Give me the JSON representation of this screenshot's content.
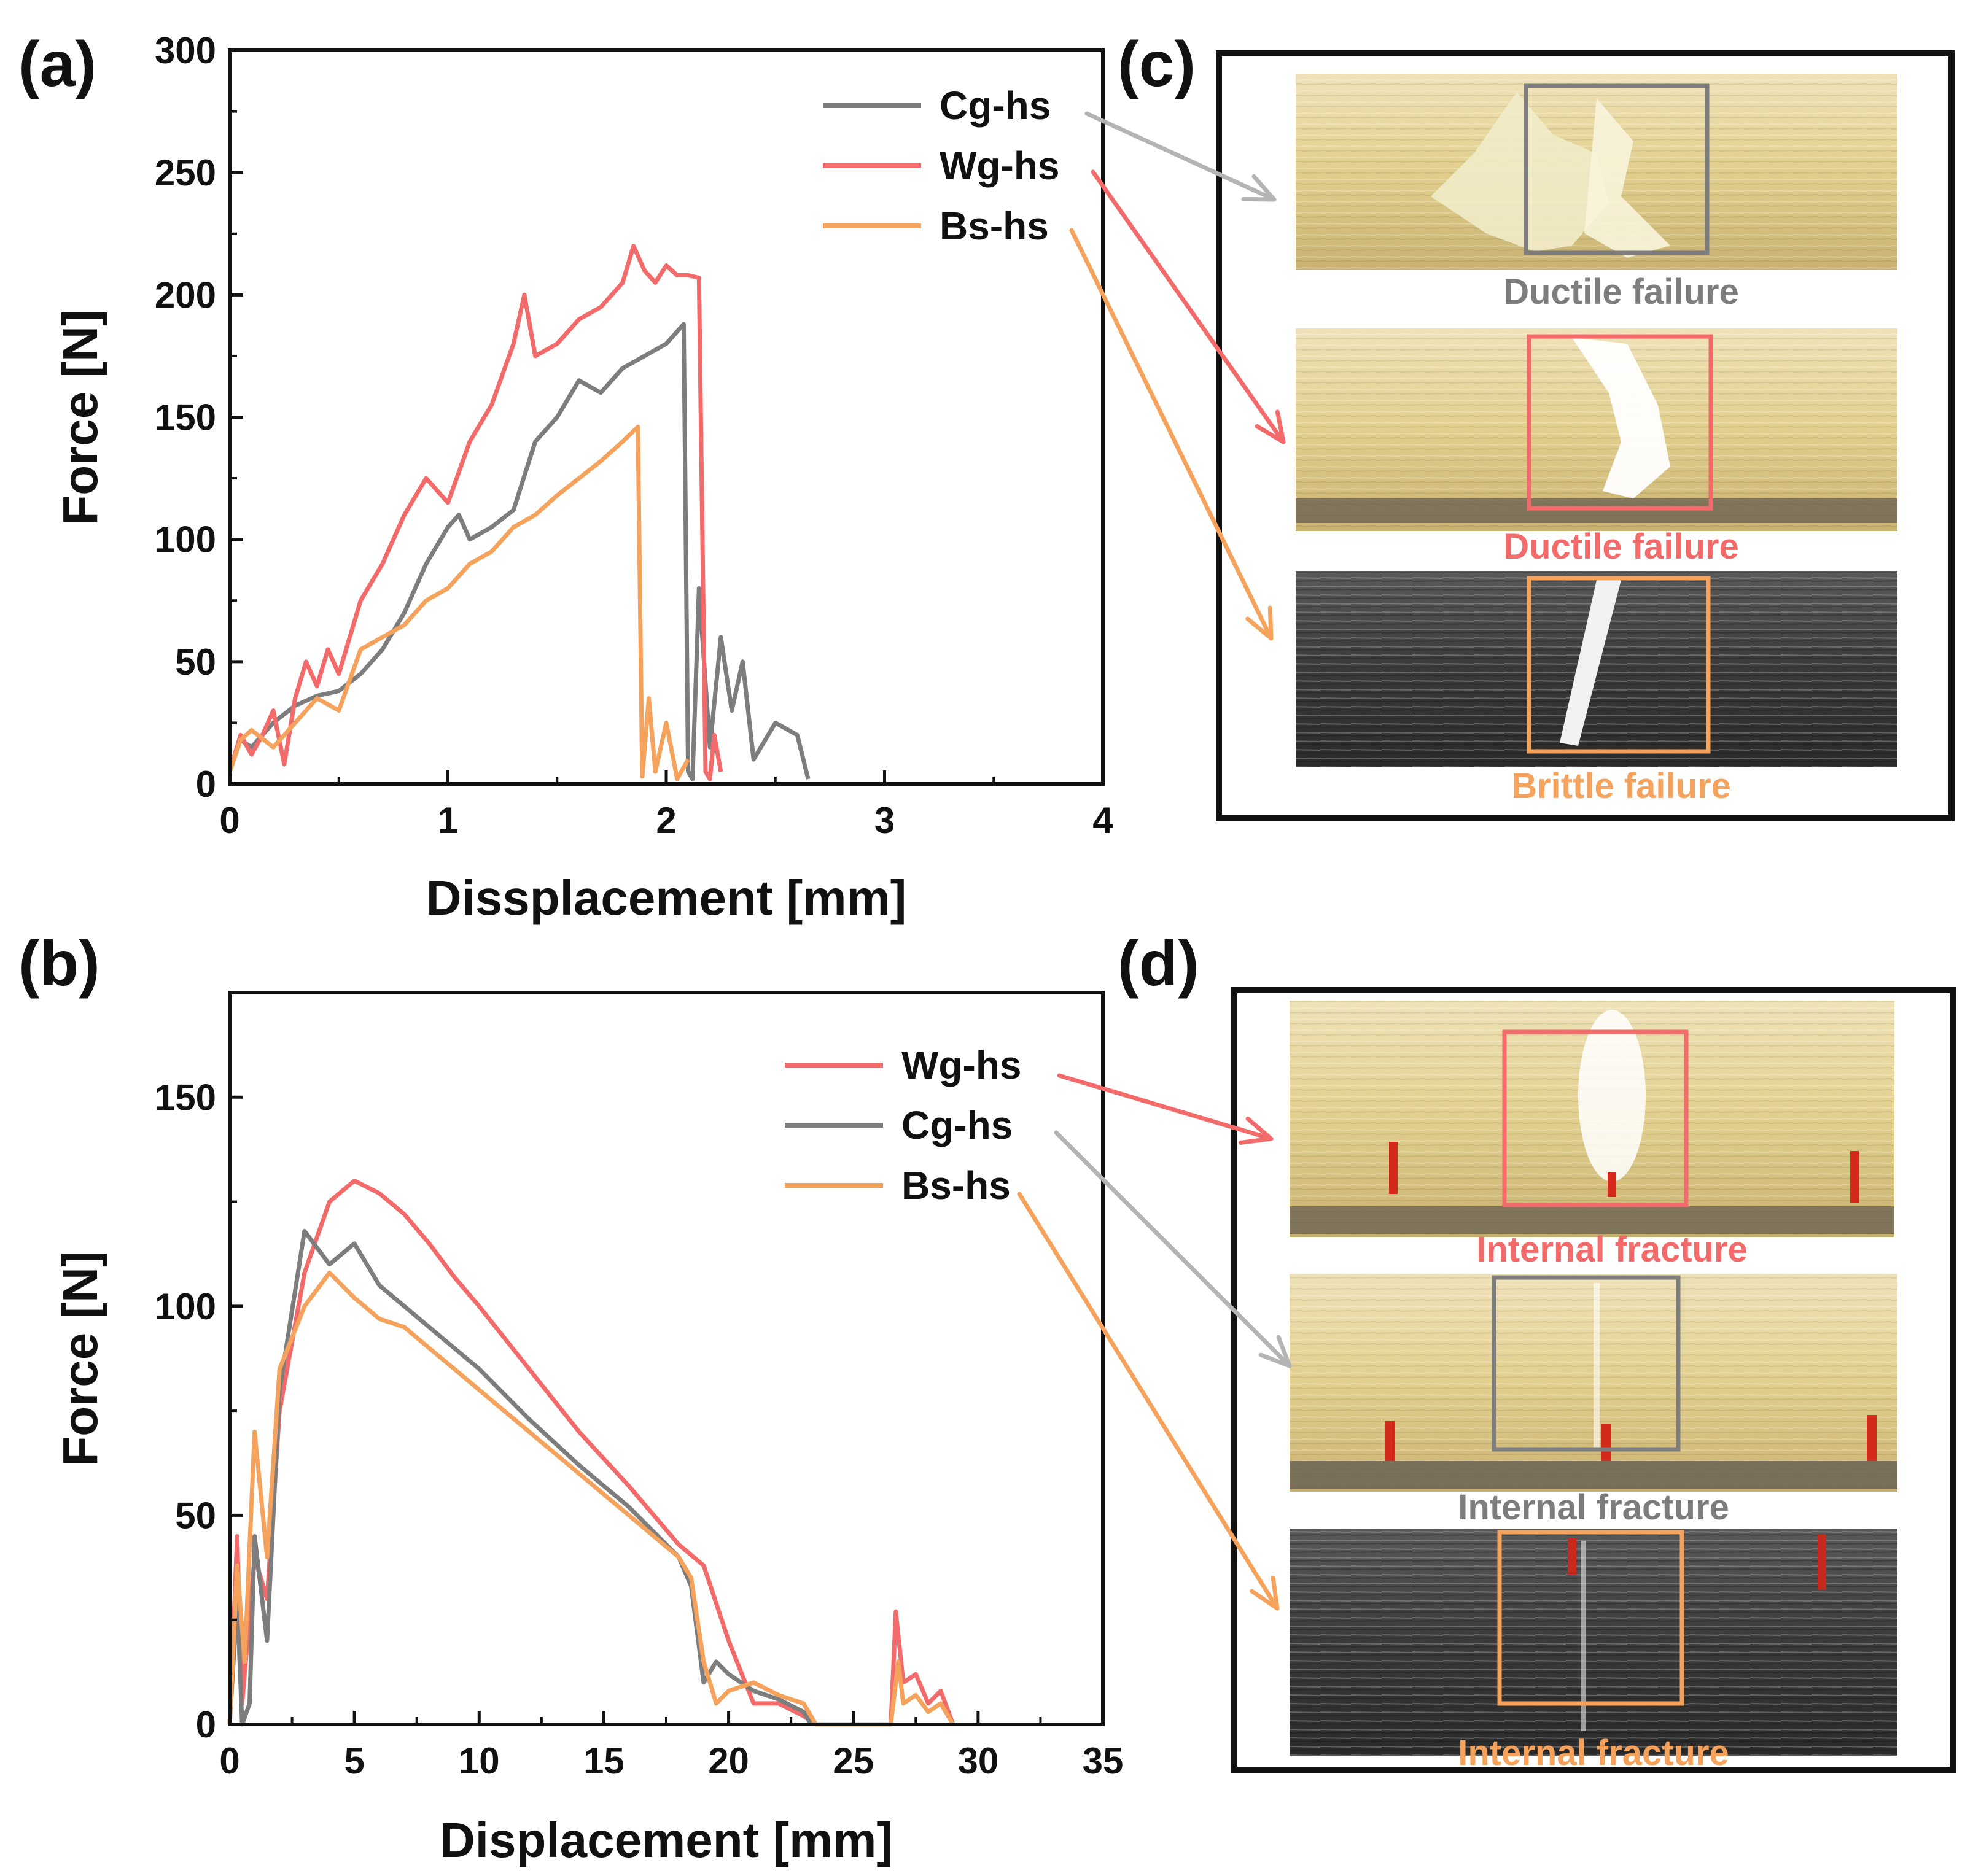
{
  "colors": {
    "Cg-hs": "#7d7d7d",
    "Wg-hs": "#f26a6a",
    "Bs-hs": "#f5a35c",
    "arrow_gray": "#b4b4b4"
  },
  "panels": {
    "a": "(a)",
    "b": "(b)",
    "c": "(c)",
    "d": "(d)"
  },
  "photos_c": [
    {
      "series": "Cg-hs",
      "caption": "Ductile failure",
      "caption_color": "#7d7d7d",
      "photo": "yellow-specimen-photo"
    },
    {
      "series": "Wg-hs",
      "caption": "Ductile failure",
      "caption_color": "#f26a6a",
      "photo": "yellow-specimen-photo"
    },
    {
      "series": "Bs-hs",
      "caption": "Brittle failure",
      "caption_color": "#f5a35c",
      "photo": "dark-specimen-photo"
    }
  ],
  "photos_d": [
    {
      "series": "Wg-hs",
      "caption": "Internal fracture",
      "caption_color": "#f26a6a",
      "photo": "yellow-specimen-photo"
    },
    {
      "series": "Cg-hs",
      "caption": "Internal fracture",
      "caption_color": "#7d7d7d",
      "photo": "yellow-specimen-photo"
    },
    {
      "series": "Bs-hs",
      "caption": "Internal fracture",
      "caption_color": "#f5a35c",
      "photo": "dark-specimen-photo"
    }
  ],
  "chart_data": [
    {
      "type": "line",
      "panel": "a",
      "xlabel": "Dissplacement [mm]",
      "ylabel": "Force [N]",
      "xlim": [
        0,
        4
      ],
      "ylim": [
        0,
        300
      ],
      "xticks": [
        0,
        1,
        2,
        3,
        4
      ],
      "yticks": [
        0,
        50,
        100,
        150,
        200,
        250,
        300
      ],
      "legend": "top-right",
      "series": [
        {
          "name": "Cg-hs",
          "x": [
            0,
            0.05,
            0.1,
            0.2,
            0.3,
            0.4,
            0.5,
            0.6,
            0.7,
            0.8,
            0.9,
            1.0,
            1.05,
            1.1,
            1.2,
            1.3,
            1.4,
            1.5,
            1.6,
            1.7,
            1.8,
            1.9,
            2.0,
            2.08,
            2.1,
            2.12,
            2.15,
            2.2,
            2.25,
            2.3,
            2.35,
            2.4,
            2.5,
            2.6,
            2.65
          ],
          "y": [
            5,
            18,
            15,
            25,
            32,
            36,
            38,
            45,
            55,
            70,
            90,
            105,
            110,
            100,
            105,
            112,
            140,
            150,
            165,
            160,
            170,
            175,
            180,
            188,
            5,
            2,
            80,
            15,
            60,
            30,
            50,
            10,
            25,
            20,
            2
          ]
        },
        {
          "name": "Wg-hs",
          "x": [
            0,
            0.05,
            0.1,
            0.15,
            0.2,
            0.25,
            0.3,
            0.35,
            0.4,
            0.45,
            0.5,
            0.6,
            0.7,
            0.8,
            0.9,
            1.0,
            1.1,
            1.2,
            1.3,
            1.35,
            1.4,
            1.5,
            1.6,
            1.7,
            1.8,
            1.85,
            1.9,
            1.95,
            2.0,
            2.05,
            2.1,
            2.15,
            2.18,
            2.2,
            2.22,
            2.25
          ],
          "y": [
            5,
            20,
            12,
            20,
            30,
            8,
            35,
            50,
            40,
            55,
            45,
            75,
            90,
            110,
            125,
            115,
            140,
            155,
            180,
            200,
            175,
            180,
            190,
            195,
            205,
            220,
            210,
            205,
            212,
            208,
            208,
            207,
            5,
            2,
            20,
            5
          ]
        },
        {
          "name": "Bs-hs",
          "x": [
            0,
            0.05,
            0.1,
            0.2,
            0.3,
            0.4,
            0.5,
            0.6,
            0.7,
            0.8,
            0.9,
            1.0,
            1.1,
            1.2,
            1.3,
            1.4,
            1.5,
            1.6,
            1.7,
            1.8,
            1.87,
            1.89,
            1.92,
            1.95,
            2.0,
            2.05,
            2.1
          ],
          "y": [
            5,
            18,
            22,
            15,
            25,
            35,
            30,
            55,
            60,
            65,
            75,
            80,
            90,
            95,
            105,
            110,
            118,
            125,
            132,
            140,
            146,
            3,
            35,
            5,
            25,
            2,
            10
          ]
        }
      ]
    },
    {
      "type": "line",
      "panel": "b",
      "xlabel": "Displacement [mm]",
      "ylabel": "Force [N]",
      "xlim": [
        0,
        35
      ],
      "ylim": [
        0,
        175
      ],
      "xticks": [
        0,
        5,
        10,
        15,
        20,
        25,
        30,
        35
      ],
      "yticks": [
        0,
        50,
        100,
        150
      ],
      "legend": "top-right",
      "series": [
        {
          "name": "Wg-hs",
          "x": [
            0,
            0.3,
            0.5,
            1,
            1.5,
            2,
            3,
            4,
            5,
            6,
            7,
            8,
            9,
            10,
            12,
            14,
            16,
            18,
            19,
            20,
            21,
            22,
            23,
            23.5,
            26.5,
            26.7,
            27,
            27.5,
            28,
            28.5,
            29
          ],
          "y": [
            0,
            45,
            5,
            40,
            30,
            75,
            108,
            125,
            130,
            127,
            122,
            115,
            107,
            100,
            85,
            70,
            57,
            43,
            38,
            20,
            5,
            5,
            2,
            0,
            0,
            27,
            10,
            12,
            5,
            8,
            0
          ]
        },
        {
          "name": "Cg-hs",
          "x": [
            0,
            0.3,
            0.5,
            0.8,
            1,
            1.5,
            2,
            3,
            4,
            5,
            6,
            7,
            8,
            9,
            10,
            12,
            14,
            16,
            18,
            18.5,
            19,
            19.5,
            20,
            21,
            22,
            23,
            23.3
          ],
          "y": [
            0,
            30,
            0,
            5,
            45,
            20,
            80,
            118,
            110,
            115,
            105,
            100,
            95,
            90,
            85,
            73,
            62,
            52,
            40,
            33,
            10,
            15,
            12,
            8,
            6,
            3,
            0
          ]
        },
        {
          "name": "Bs-hs",
          "x": [
            0,
            0.3,
            0.6,
            1,
            1.5,
            2,
            3,
            4,
            5,
            6,
            7,
            8,
            9,
            10,
            12,
            14,
            16,
            18,
            18.5,
            19,
            19.5,
            20,
            21,
            22,
            23,
            23.5,
            26.5,
            26.8,
            27,
            27.5,
            28,
            28.5,
            29
          ],
          "y": [
            0,
            38,
            15,
            70,
            40,
            85,
            100,
            108,
            102,
            97,
            95,
            90,
            85,
            80,
            70,
            60,
            50,
            40,
            35,
            15,
            5,
            8,
            10,
            7,
            5,
            0,
            0,
            15,
            5,
            7,
            3,
            5,
            0
          ]
        }
      ]
    }
  ]
}
